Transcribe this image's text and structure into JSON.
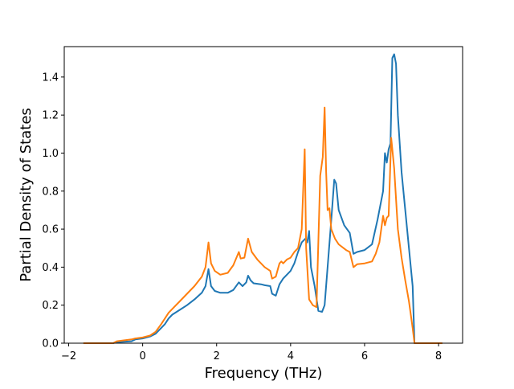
{
  "chart_data": {
    "type": "line",
    "title": "",
    "xlabel": "Frequency (THz)",
    "ylabel": "Partial Density of States",
    "xlim": [
      -2.12,
      8.65
    ],
    "ylim": [
      0.0,
      1.56
    ],
    "xticks": [
      -2,
      0,
      2,
      4,
      6,
      8
    ],
    "yticks": [
      0.0,
      0.2,
      0.4,
      0.6,
      0.8,
      1.0,
      1.2,
      1.4
    ],
    "grid": false,
    "legend": "none",
    "series": [
      {
        "color": "#1f77b4",
        "points": [
          [
            -1.6,
            0.0
          ],
          [
            -0.8,
            0.0
          ],
          [
            -0.7,
            0.005
          ],
          [
            -0.3,
            0.01
          ],
          [
            -0.2,
            0.02
          ],
          [
            0.0,
            0.025
          ],
          [
            0.2,
            0.035
          ],
          [
            0.35,
            0.05
          ],
          [
            0.5,
            0.08
          ],
          [
            0.6,
            0.1
          ],
          [
            0.7,
            0.13
          ],
          [
            0.8,
            0.15
          ],
          [
            1.0,
            0.175
          ],
          [
            1.2,
            0.2
          ],
          [
            1.4,
            0.23
          ],
          [
            1.6,
            0.265
          ],
          [
            1.7,
            0.3
          ],
          [
            1.78,
            0.39
          ],
          [
            1.85,
            0.3
          ],
          [
            1.95,
            0.275
          ],
          [
            2.1,
            0.265
          ],
          [
            2.3,
            0.265
          ],
          [
            2.45,
            0.28
          ],
          [
            2.6,
            0.32
          ],
          [
            2.7,
            0.3
          ],
          [
            2.8,
            0.32
          ],
          [
            2.85,
            0.355
          ],
          [
            2.92,
            0.33
          ],
          [
            3.0,
            0.315
          ],
          [
            3.2,
            0.31
          ],
          [
            3.3,
            0.305
          ],
          [
            3.45,
            0.3
          ],
          [
            3.5,
            0.26
          ],
          [
            3.6,
            0.25
          ],
          [
            3.7,
            0.31
          ],
          [
            3.8,
            0.34
          ],
          [
            3.9,
            0.36
          ],
          [
            4.0,
            0.38
          ],
          [
            4.1,
            0.42
          ],
          [
            4.2,
            0.48
          ],
          [
            4.3,
            0.53
          ],
          [
            4.4,
            0.55
          ],
          [
            4.45,
            0.53
          ],
          [
            4.5,
            0.59
          ],
          [
            4.55,
            0.4
          ],
          [
            4.65,
            0.3
          ],
          [
            4.75,
            0.17
          ],
          [
            4.85,
            0.165
          ],
          [
            4.92,
            0.2
          ],
          [
            5.0,
            0.4
          ],
          [
            5.1,
            0.65
          ],
          [
            5.18,
            0.86
          ],
          [
            5.23,
            0.84
          ],
          [
            5.3,
            0.7
          ],
          [
            5.45,
            0.62
          ],
          [
            5.6,
            0.58
          ],
          [
            5.7,
            0.47
          ],
          [
            5.8,
            0.48
          ],
          [
            6.0,
            0.49
          ],
          [
            6.2,
            0.52
          ],
          [
            6.35,
            0.65
          ],
          [
            6.5,
            0.8
          ],
          [
            6.55,
            1.0
          ],
          [
            6.6,
            0.95
          ],
          [
            6.65,
            1.02
          ],
          [
            6.7,
            1.05
          ],
          [
            6.75,
            1.5
          ],
          [
            6.8,
            1.52
          ],
          [
            6.85,
            1.47
          ],
          [
            6.9,
            1.2
          ],
          [
            7.0,
            0.9
          ],
          [
            7.1,
            0.7
          ],
          [
            7.2,
            0.5
          ],
          [
            7.3,
            0.3
          ],
          [
            7.35,
            0.0
          ],
          [
            8.1,
            0.0
          ]
        ]
      },
      {
        "color": "#ff7f0e",
        "points": [
          [
            -1.6,
            0.0
          ],
          [
            -0.8,
            0.0
          ],
          [
            -0.7,
            0.01
          ],
          [
            -0.3,
            0.02
          ],
          [
            -0.2,
            0.025
          ],
          [
            0.0,
            0.03
          ],
          [
            0.2,
            0.04
          ],
          [
            0.35,
            0.06
          ],
          [
            0.5,
            0.1
          ],
          [
            0.6,
            0.13
          ],
          [
            0.7,
            0.16
          ],
          [
            0.8,
            0.18
          ],
          [
            1.0,
            0.22
          ],
          [
            1.2,
            0.26
          ],
          [
            1.4,
            0.3
          ],
          [
            1.6,
            0.35
          ],
          [
            1.7,
            0.4
          ],
          [
            1.78,
            0.53
          ],
          [
            1.85,
            0.42
          ],
          [
            1.95,
            0.38
          ],
          [
            2.1,
            0.36
          ],
          [
            2.3,
            0.37
          ],
          [
            2.45,
            0.41
          ],
          [
            2.6,
            0.48
          ],
          [
            2.65,
            0.445
          ],
          [
            2.75,
            0.45
          ],
          [
            2.85,
            0.55
          ],
          [
            2.95,
            0.48
          ],
          [
            3.1,
            0.44
          ],
          [
            3.3,
            0.4
          ],
          [
            3.45,
            0.38
          ],
          [
            3.5,
            0.34
          ],
          [
            3.6,
            0.35
          ],
          [
            3.7,
            0.42
          ],
          [
            3.75,
            0.43
          ],
          [
            3.8,
            0.42
          ],
          [
            3.9,
            0.44
          ],
          [
            4.0,
            0.45
          ],
          [
            4.1,
            0.48
          ],
          [
            4.2,
            0.5
          ],
          [
            4.3,
            0.6
          ],
          [
            4.38,
            1.02
          ],
          [
            4.42,
            0.5
          ],
          [
            4.5,
            0.23
          ],
          [
            4.6,
            0.2
          ],
          [
            4.7,
            0.19
          ],
          [
            4.8,
            0.88
          ],
          [
            4.87,
            0.98
          ],
          [
            4.92,
            1.24
          ],
          [
            4.96,
            0.9
          ],
          [
            5.0,
            0.7
          ],
          [
            5.05,
            0.71
          ],
          [
            5.1,
            0.6
          ],
          [
            5.2,
            0.55
          ],
          [
            5.3,
            0.52
          ],
          [
            5.5,
            0.49
          ],
          [
            5.6,
            0.48
          ],
          [
            5.7,
            0.4
          ],
          [
            5.8,
            0.415
          ],
          [
            6.0,
            0.42
          ],
          [
            6.2,
            0.43
          ],
          [
            6.3,
            0.47
          ],
          [
            6.4,
            0.53
          ],
          [
            6.5,
            0.67
          ],
          [
            6.55,
            0.62
          ],
          [
            6.6,
            0.66
          ],
          [
            6.65,
            0.67
          ],
          [
            6.72,
            1.08
          ],
          [
            6.8,
            0.92
          ],
          [
            6.9,
            0.6
          ],
          [
            7.0,
            0.45
          ],
          [
            7.1,
            0.33
          ],
          [
            7.2,
            0.22
          ],
          [
            7.3,
            0.08
          ],
          [
            7.35,
            0.0
          ],
          [
            8.1,
            0.0
          ]
        ]
      }
    ]
  }
}
